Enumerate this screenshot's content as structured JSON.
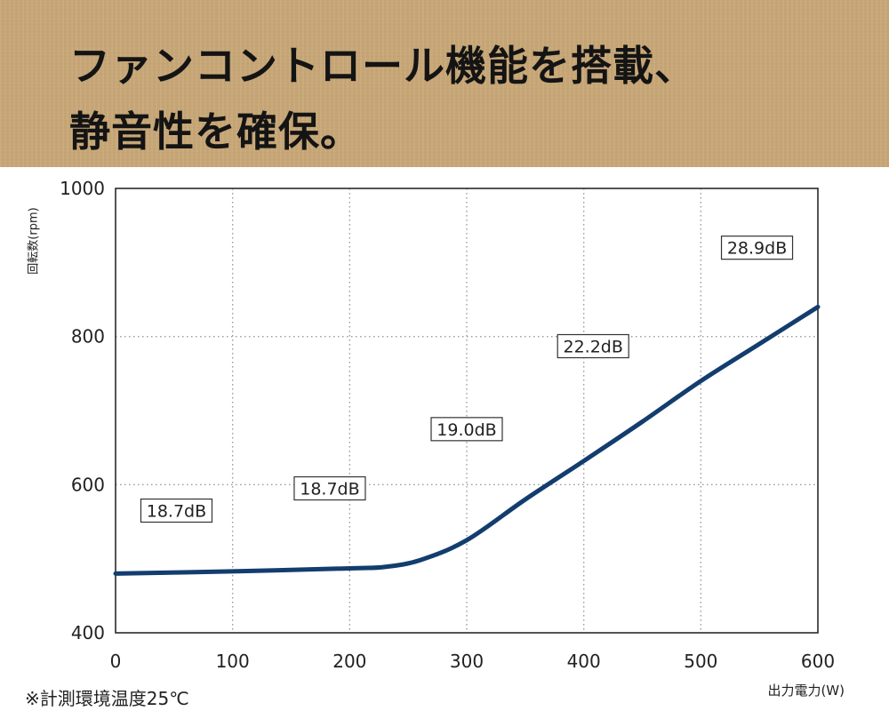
{
  "header": {
    "line1": "ファンコントロール機能を搭載、",
    "line2": "静音性を確保。",
    "background_color": "#c9a878"
  },
  "chart_data": {
    "type": "line",
    "title": "",
    "xlabel": "出力電力(W)",
    "ylabel": "回転数(rpm)",
    "xlim": [
      0,
      600
    ],
    "ylim": [
      400,
      1000
    ],
    "xticks": [
      0,
      100,
      200,
      300,
      400,
      500,
      600
    ],
    "yticks": [
      400,
      600,
      800,
      1000
    ],
    "grid": true,
    "series": [
      {
        "color": "#123d6e",
        "points": [
          [
            0,
            480
          ],
          [
            100,
            483
          ],
          [
            200,
            487
          ],
          [
            230,
            489
          ],
          [
            260,
            498
          ],
          [
            300,
            525
          ],
          [
            350,
            580
          ],
          [
            400,
            632
          ],
          [
            450,
            685
          ],
          [
            500,
            740
          ],
          [
            550,
            790
          ],
          [
            600,
            840
          ]
        ]
      }
    ],
    "annotations": [
      {
        "text": "18.7dB",
        "x": 52,
        "y": 565
      },
      {
        "text": "18.7dB",
        "x": 183,
        "y": 595
      },
      {
        "text": "19.0dB",
        "x": 300,
        "y": 675
      },
      {
        "text": "22.2dB",
        "x": 408,
        "y": 787
      },
      {
        "text": "28.9dB",
        "x": 548,
        "y": 920
      }
    ]
  },
  "footnote": "※計測環境温度25℃"
}
